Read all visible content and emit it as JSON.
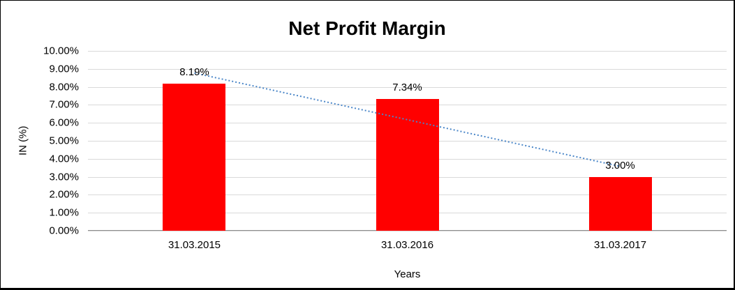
{
  "chart_data": {
    "type": "bar",
    "title": "Net Profit Margin",
    "xlabel": "Years",
    "ylabel": "IN (%)",
    "categories": [
      "31.03.2015",
      "31.03.2016",
      "31.03.2017"
    ],
    "values": [
      8.19,
      7.34,
      3.0
    ],
    "data_labels": [
      "8.19%",
      "7.34%",
      "3.00%"
    ],
    "ylim": [
      0,
      10
    ],
    "ytick_step": 1,
    "grid": true,
    "legend": false,
    "bar_color": "#ff0000",
    "trendline": {
      "style": "dotted",
      "color": "#4a86c8",
      "start_value": 8.77,
      "end_value": 3.58
    }
  },
  "colors": {
    "bar": "#ff0000",
    "trendline": "#4a86c8",
    "gridline": "#d9d9d9",
    "axis_line": "#8c8c8c",
    "text": "#000000"
  }
}
